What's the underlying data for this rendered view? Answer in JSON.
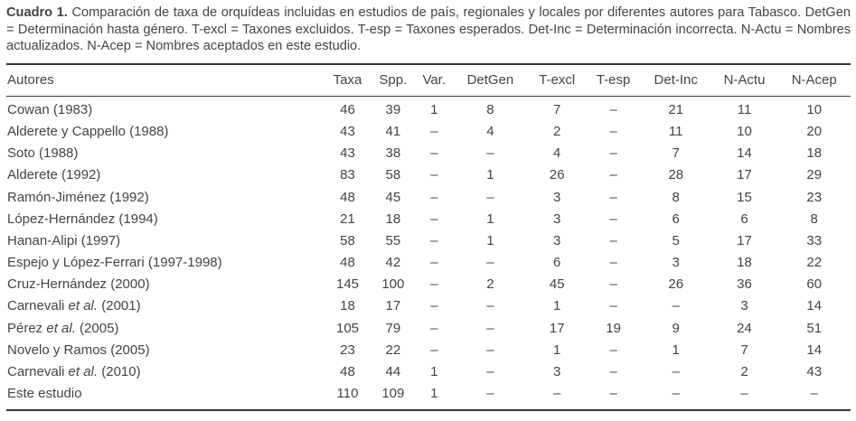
{
  "caption": {
    "label": "Cuadro 1.",
    "text": "Comparación de taxa de orquídeas incluidas en estudios de país, regionales y locales por diferentes autores para Tabasco. DetGen = Determinación hasta género. T-excl = Taxones excluidos. T-esp = Taxones esperados. Det-Inc = Determinación incorrecta. N-Actu = Nombres actualizados. N-Acep = Nombres aceptados en este estudio."
  },
  "table": {
    "columns": [
      "Autores",
      "Taxa",
      "Spp.",
      "Var.",
      "DetGen",
      "T-excl",
      "T-esp",
      "Det-Inc",
      "N-Actu",
      "N-Acep"
    ],
    "rows": [
      {
        "autor": "Cowan (1983)",
        "values": [
          "46",
          "39",
          "1",
          "8",
          "7",
          "–",
          "21",
          "11",
          "10"
        ]
      },
      {
        "autor": "Alderete y Cappello (1988)",
        "values": [
          "43",
          "41",
          "–",
          "4",
          "2",
          "–",
          "11",
          "10",
          "20"
        ]
      },
      {
        "autor": "Soto (1988)",
        "values": [
          "43",
          "38",
          "–",
          "–",
          "4",
          "–",
          "7",
          "14",
          "18"
        ]
      },
      {
        "autor": "Alderete (1992)",
        "values": [
          "83",
          "58",
          "–",
          "1",
          "26",
          "–",
          "28",
          "17",
          "29"
        ]
      },
      {
        "autor": "Ramón-Jiménez (1992)",
        "values": [
          "48",
          "45",
          "–",
          "–",
          "3",
          "–",
          "8",
          "15",
          "23"
        ]
      },
      {
        "autor": "López-Hernández (1994)",
        "values": [
          "21",
          "18",
          "–",
          "1",
          "3",
          "–",
          "6",
          "6",
          "8"
        ]
      },
      {
        "autor": "Hanan-Alipi (1997)",
        "values": [
          "58",
          "55",
          "–",
          "1",
          "3",
          "–",
          "5",
          "17",
          "33"
        ]
      },
      {
        "autor": "Espejo y López-Ferrari (1997-1998)",
        "values": [
          "48",
          "42",
          "–",
          "–",
          "6",
          "–",
          "3",
          "18",
          "22"
        ]
      },
      {
        "autor": "Cruz-Hernández (2000)",
        "values": [
          "145",
          "100",
          "–",
          "2",
          "45",
          "–",
          "26",
          "36",
          "60"
        ]
      },
      {
        "autor": "Carnevali *et al.* (2001)",
        "values": [
          "18",
          "17",
          "–",
          "–",
          "1",
          "–",
          "–",
          "3",
          "14"
        ]
      },
      {
        "autor": "Pérez *et al.* (2005)",
        "values": [
          "105",
          "79",
          "–",
          "–",
          "17",
          "19",
          "9",
          "24",
          "51"
        ]
      },
      {
        "autor": "Novelo y Ramos (2005)",
        "values": [
          "23",
          "22",
          "–",
          "–",
          "1",
          "–",
          "1",
          "7",
          "14"
        ]
      },
      {
        "autor": "Carnevali *et al.* (2010)",
        "values": [
          "48",
          "44",
          "1",
          "–",
          "3",
          "–",
          "–",
          "2",
          "43"
        ]
      },
      {
        "autor": "Este estudio",
        "values": [
          "110",
          "109",
          "1",
          "–",
          "–",
          "–",
          "–",
          "–",
          "–"
        ]
      }
    ]
  },
  "colors": {
    "text": "#40454a",
    "rule": "#31373c"
  }
}
